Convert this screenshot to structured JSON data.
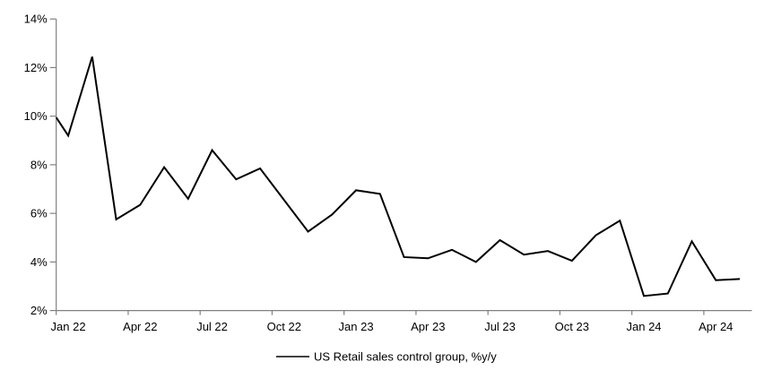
{
  "chart_data": {
    "type": "line",
    "title": "",
    "legend_label": "US Retail sales control group, %y/y",
    "legend_position": "bottom-center",
    "grid": false,
    "background": "#ffffff",
    "line_color": "#000000",
    "axis_color": "#808080",
    "text_color": "#000000",
    "x": [
      "Jan 22",
      "Feb 22",
      "Mar 22",
      "Apr 22",
      "May 22",
      "Jun 22",
      "Jul 22",
      "Aug 22",
      "Sep 22",
      "Oct 22",
      "Nov 22",
      "Dec 22",
      "Jan 23",
      "Feb 23",
      "Mar 23",
      "Apr 23",
      "May 23",
      "Jun 23",
      "Jul 23",
      "Aug 23",
      "Sep 23",
      "Oct 23",
      "Nov 23",
      "Dec 23",
      "Jan 24",
      "Feb 24",
      "Mar 24",
      "Apr 24",
      "May 24"
    ],
    "series": [
      {
        "name": "US Retail sales control group, %y/y",
        "values": [
          9.2,
          12.45,
          5.75,
          6.35,
          7.9,
          6.6,
          8.6,
          7.4,
          7.85,
          6.55,
          5.25,
          5.95,
          6.95,
          6.8,
          4.2,
          4.15,
          4.5,
          4.0,
          4.9,
          4.3,
          4.45,
          4.05,
          5.1,
          5.7,
          2.6,
          2.7,
          4.85,
          3.25,
          3.3
        ]
      }
    ],
    "line_enters_at_left_axis_value": 9.95,
    "y_axis": {
      "min": 2,
      "max": 14,
      "tick_step": 2,
      "tick_labels": [
        "2%",
        "4%",
        "6%",
        "8%",
        "10%",
        "12%",
        "14%"
      ]
    },
    "x_axis": {
      "tick_labels": [
        "Jan 22",
        "Apr 22",
        "Jul 22",
        "Oct 22",
        "Jan 23",
        "Apr 23",
        "Jul 23",
        "Oct 23",
        "Jan 24",
        "Apr 24"
      ],
      "tick_month_indices": [
        0,
        3,
        6,
        9,
        12,
        15,
        18,
        21,
        24,
        27
      ]
    }
  }
}
